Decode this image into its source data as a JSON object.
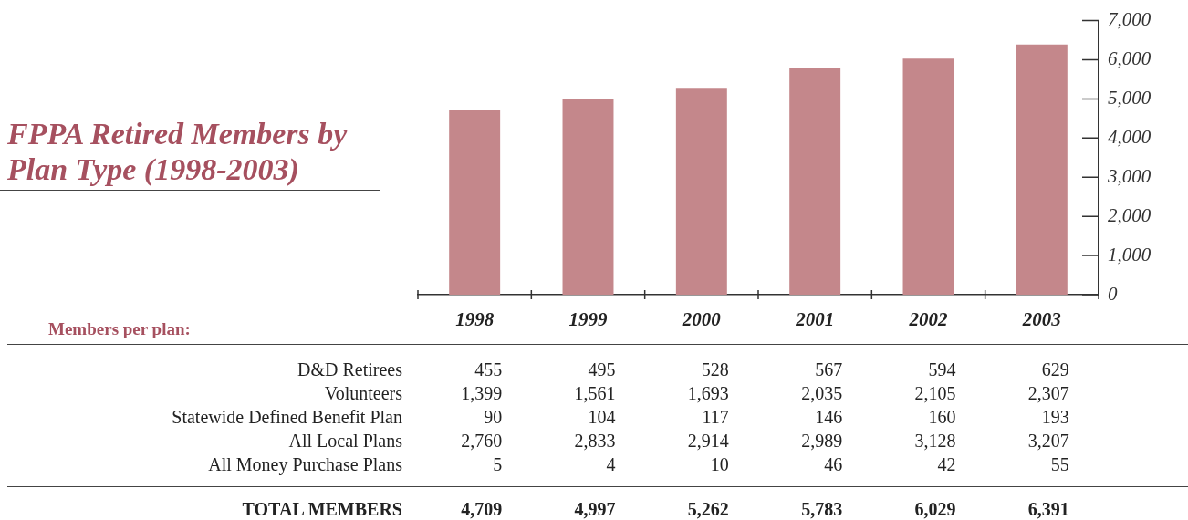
{
  "chart_data": [
    {
      "type": "bar",
      "title": "FPPA Retired Members by Plan Type (1998-2003)",
      "categories": [
        "1998",
        "1999",
        "2000",
        "2001",
        "2002",
        "2003"
      ],
      "values": [
        4709,
        4997,
        5262,
        5783,
        6029,
        6391
      ],
      "value_labels": [
        "4,709",
        "4,997",
        "5,262",
        "5,783",
        "6,029",
        "6,391"
      ],
      "color": "#c4878b",
      "ylim": [
        0,
        7000
      ],
      "yticks": [
        0,
        {
          "value": 1000,
          "label": "1,000"
        },
        {
          "value": 2000,
          "label": "2,000"
        },
        {
          "value": 3000,
          "label": "3,000"
        },
        {
          "value": 4000,
          "label": "4,000"
        },
        {
          "value": 5000,
          "label": "5,000"
        },
        {
          "value": 6000,
          "label": "6,000"
        },
        {
          "value": 7000,
          "label": "7,000"
        }
      ],
      "annotations": [
        "TOTAL MEMBERS"
      ]
    },
    {
      "type": "other",
      "title": "Members per plan:",
      "annotations": [
        "D&D Retirees",
        "455",
        "495",
        "528",
        "567",
        "594",
        "629",
        "Volunteers",
        "1,399",
        "1,561",
        "1,693",
        "2,035",
        "2,105",
        "2,307",
        "Statewide Defined Benefit Plan",
        "90",
        "104",
        "117",
        "146",
        "160",
        "193",
        "All Local Plans",
        "2,760",
        "2,833",
        "2,914",
        "2,989",
        "3,128",
        "3,207",
        "All Money Purchase Plans",
        "5",
        "4",
        "10",
        "46",
        "42",
        "55"
      ]
    }
  ]
}
